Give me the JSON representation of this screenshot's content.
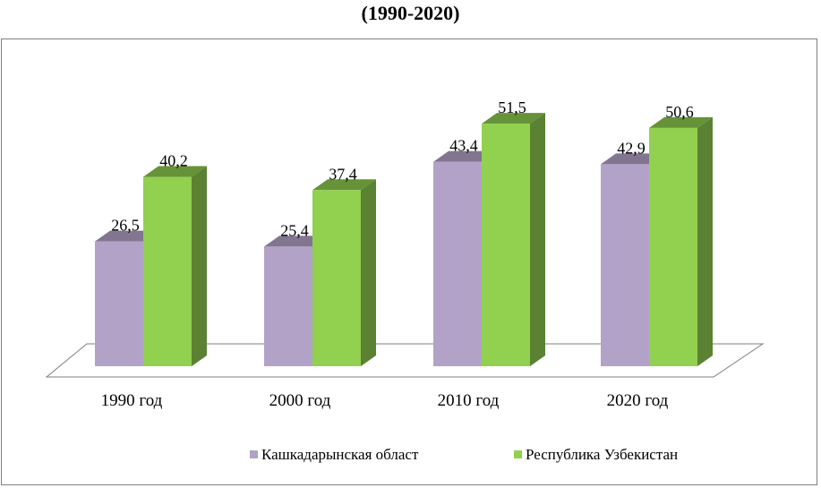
{
  "chart_data": {
    "type": "bar",
    "title": "(1990-2020)",
    "categories": [
      "1990 год",
      "2000 год",
      "2010 год",
      "2020 год"
    ],
    "series": [
      {
        "name": "Кашкадарынская област",
        "values": [
          26.5,
          25.4,
          43.4,
          42.9
        ],
        "labels": [
          "26,5",
          "25,4",
          "43,4",
          "42,9"
        ],
        "color": "#b3a2c7"
      },
      {
        "name": "Республика Узбекистан",
        "values": [
          40.2,
          37.4,
          51.5,
          50.6
        ],
        "labels": [
          "40,2",
          "37,4",
          "51,5",
          "50,6"
        ],
        "color": "#92d050"
      }
    ],
    "ylim": [
      0,
      55
    ],
    "grid": false,
    "style": "3d-column",
    "legend_position": "bottom"
  }
}
